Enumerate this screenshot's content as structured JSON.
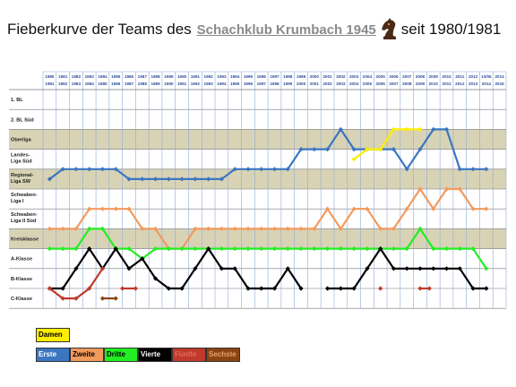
{
  "title": {
    "prefix": "Fieberkurve der Teams des",
    "club": "Schachklub Krumbach 1945",
    "suffix": "seit 1980/1981",
    "logo_icon": "chess-knight-icon"
  },
  "chart_data": {
    "type": "line",
    "season_labels_top": [
      "1980",
      "1981",
      "1982",
      "1983",
      "1984",
      "1985",
      "1986",
      "1987",
      "1988",
      "1989",
      "1990",
      "1991",
      "1992",
      "1993",
      "1994",
      "1995",
      "1996",
      "1997",
      "1998",
      "1999",
      "2000",
      "2001",
      "2002",
      "2003",
      "2004",
      "2005",
      "2006",
      "2007",
      "2008",
      "2009",
      "2010",
      "2011",
      "2012",
      "13/05",
      "2014"
    ],
    "season_labels_bottom": [
      "1981",
      "1982",
      "1983",
      "1984",
      "1985",
      "1986",
      "1987",
      "1988",
      "1989",
      "1990",
      "1991",
      "1992",
      "1993",
      "1994",
      "1995",
      "1996",
      "1997",
      "1998",
      "1999",
      "2000",
      "2001",
      "2002",
      "2003",
      "2004",
      "2005",
      "2006",
      "2007",
      "2008",
      "2009",
      "2010",
      "2011",
      "2012",
      "2013",
      "2014",
      "2015"
    ],
    "leagues": [
      "1. BL",
      "2. BL Süd",
      "Oberliga",
      "Landes-Liga Süd",
      "Regional-Liga SW",
      "Schwaben-Liga I",
      "Schwaben-Liga II Süd",
      "Kreisklasse",
      "A-Klasse",
      "B-Klasse",
      "C-Klasse"
    ],
    "y_note": "league index 0 = 1. BL (top) ... 10 = C-Klasse (bottom); .5 = between two rows",
    "series": [
      {
        "name": "Erste",
        "color": "#3b76c0",
        "values": [
          4,
          3.5,
          3.5,
          3.5,
          3.5,
          3.5,
          4,
          4,
          4,
          4,
          4,
          4,
          4,
          4,
          3.5,
          3.5,
          3.5,
          3.5,
          3.5,
          2.5,
          2.5,
          2.5,
          1.5,
          2.5,
          2.5,
          2.5,
          2.5,
          3.5,
          2.5,
          1.5,
          1.5,
          3.5,
          3.5,
          3.5,
          null
        ]
      },
      {
        "name": "Zweite",
        "color": "#f29a5c",
        "values": [
          6.5,
          6.5,
          6.5,
          5.5,
          5.5,
          5.5,
          5.5,
          6.5,
          6.5,
          7.5,
          7.5,
          6.5,
          6.5,
          6.5,
          6.5,
          6.5,
          6.5,
          6.5,
          6.5,
          6.5,
          6.5,
          5.5,
          6.5,
          5.5,
          5.5,
          6.5,
          6.5,
          5.5,
          4.5,
          5.5,
          4.5,
          4.5,
          5.5,
          5.5,
          null
        ]
      },
      {
        "name": "Dritte",
        "color": "#22ee22",
        "values": [
          7.5,
          7.5,
          7.5,
          6.5,
          6.5,
          7.5,
          7.5,
          8,
          7.5,
          7.5,
          7.5,
          7.5,
          7.5,
          7.5,
          7.5,
          7.5,
          7.5,
          7.5,
          7.5,
          7.5,
          7.5,
          7.5,
          7.5,
          7.5,
          7.5,
          7.5,
          7.5,
          7.5,
          6.5,
          7.5,
          7.5,
          7.5,
          7.5,
          8.5,
          null
        ]
      },
      {
        "name": "Vierte",
        "color": "#000000",
        "values": [
          9.5,
          9.5,
          8.5,
          7.5,
          8.5,
          7.5,
          8.5,
          8,
          9,
          9.5,
          9.5,
          8.5,
          7.5,
          8.5,
          8.5,
          9.5,
          9.5,
          9.5,
          8.5,
          9.5,
          null,
          9.5,
          9.5,
          9.5,
          8.5,
          7.5,
          8.5,
          8.5,
          8.5,
          8.5,
          8.5,
          8.5,
          9.5,
          9.5,
          null
        ]
      },
      {
        "name": "Fünfte",
        "color": "#c0392b",
        "segments": [
          [
            0,
            9.5
          ],
          [
            1,
            10
          ],
          [
            2,
            10
          ],
          [
            3,
            9.5
          ],
          [
            4,
            8.5
          ]
        ],
        "points": [
          [
            5.5,
            9.5
          ],
          [
            6.5,
            9.5
          ],
          [
            25,
            9.5
          ],
          [
            28,
            9.5
          ],
          [
            28.7,
            9.5
          ]
        ]
      },
      {
        "name": "Sechste",
        "color": "#8b4513",
        "points": [
          [
            4,
            10
          ],
          [
            5,
            10
          ]
        ]
      },
      {
        "name": "Damen",
        "color": "#ffee00",
        "values": [
          null,
          null,
          null,
          null,
          null,
          null,
          null,
          null,
          null,
          null,
          null,
          null,
          null,
          null,
          null,
          null,
          null,
          null,
          null,
          null,
          null,
          null,
          null,
          3,
          2.5,
          2.5,
          1.5,
          1.5,
          1.5,
          null,
          null,
          null,
          null,
          null,
          null
        ]
      }
    ],
    "bands": [
      "#ffffff",
      "#ffffff",
      "#d9d3b6",
      "#ffffff",
      "#d9d3b6",
      "#ffffff",
      "#ffffff",
      "#d9d3b6",
      "#ffffff",
      "#ffffff",
      "#ffffff"
    ]
  },
  "legend": {
    "damen": "Damen",
    "erste": "Erste",
    "zweite": "Zweite",
    "dritte": "Dritte",
    "vierte": "Vierte",
    "fuenfte": "Fünfte",
    "sechste": "Sechste"
  }
}
